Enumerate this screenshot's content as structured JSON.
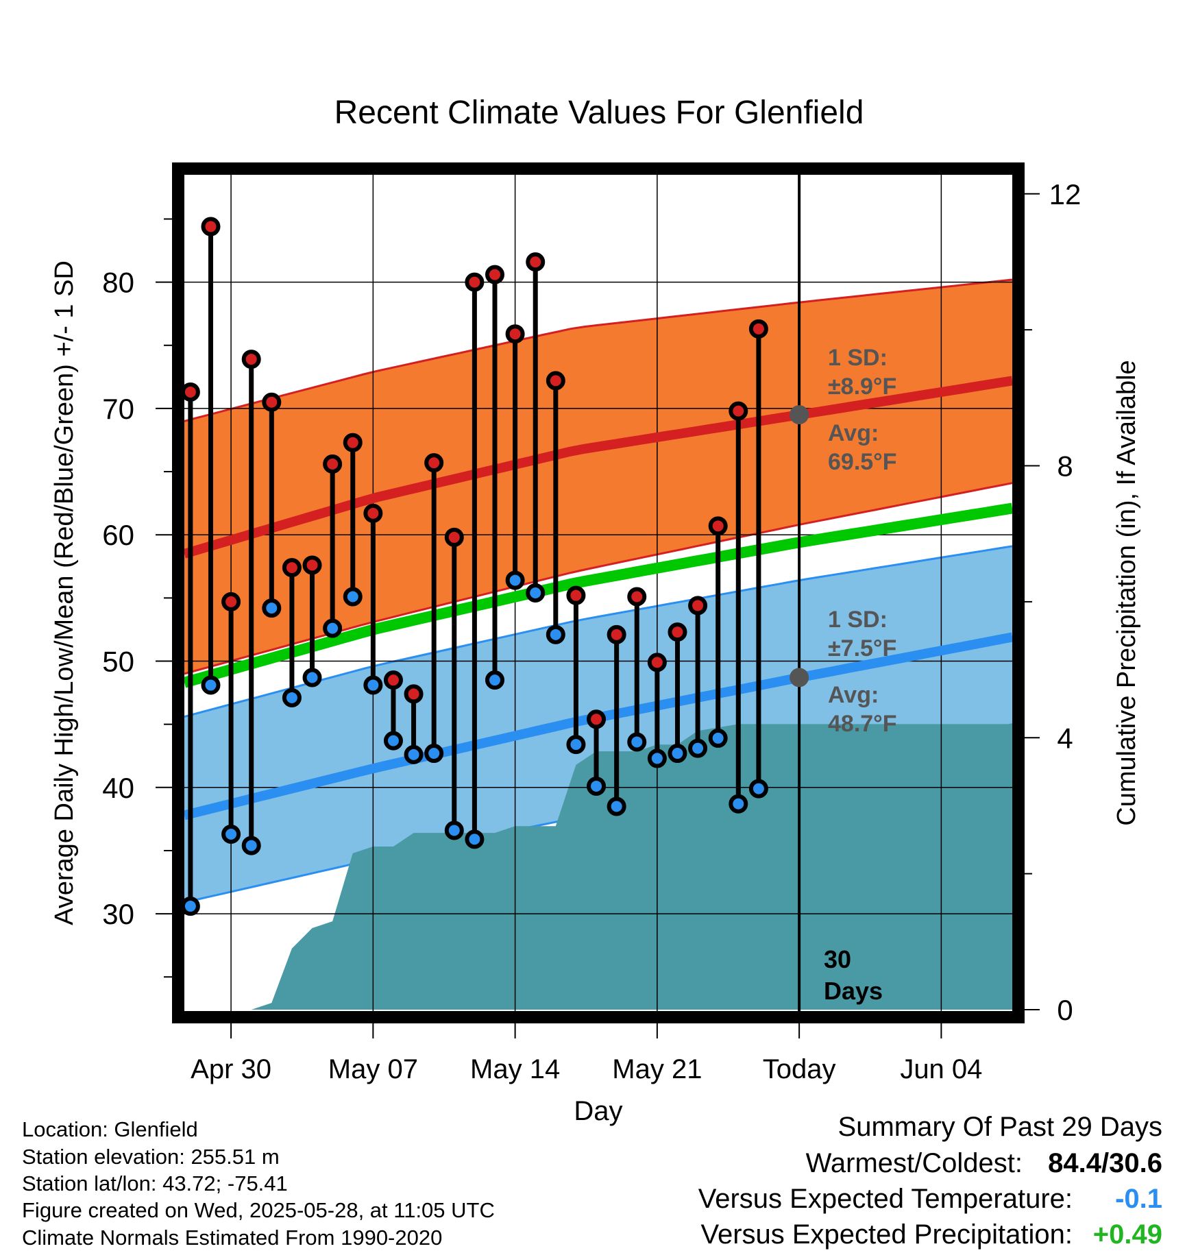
{
  "chart_data": {
    "type": "climate-range",
    "title": "Recent Climate Values For Glenfield",
    "xlabel": "Day",
    "ylabel_left": "Average Daily High/Low/Mean (Red/Blue/Green) +/- 1 SD",
    "ylabel_right": "Cumulative Precipitation (in), If Available",
    "x_start_date": "2025-04-27",
    "x_tick_labels": [
      "Apr 30",
      "May 07",
      "May 14",
      "May 21",
      "Today",
      "Jun 04"
    ],
    "x_tick_days": [
      3,
      10,
      17,
      24,
      31,
      38
    ],
    "x_range_days": [
      0.7,
      41.5
    ],
    "ylim_left": [
      22.3,
      88.5
    ],
    "y_ticks_left": [
      30,
      40,
      50,
      60,
      70,
      80
    ],
    "ylim_right": [
      -0.02,
      12.28
    ],
    "y_ticks_right": [
      0,
      4,
      8,
      12
    ],
    "today_day": 31,
    "daily": [
      {
        "day": 1,
        "high": 71.3,
        "low": 30.6
      },
      {
        "day": 2,
        "high": 84.4,
        "low": 48.1
      },
      {
        "day": 3,
        "high": 54.7,
        "low": 36.3
      },
      {
        "day": 4,
        "high": 73.9,
        "low": 35.4
      },
      {
        "day": 5,
        "high": 70.5,
        "low": 54.2
      },
      {
        "day": 6,
        "high": 57.4,
        "low": 47.1
      },
      {
        "day": 7,
        "high": 57.6,
        "low": 48.7
      },
      {
        "day": 8,
        "high": 65.6,
        "low": 52.6
      },
      {
        "day": 9,
        "high": 67.3,
        "low": 55.1
      },
      {
        "day": 10,
        "high": 61.7,
        "low": 48.1
      },
      {
        "day": 11,
        "high": 48.5,
        "low": 43.7
      },
      {
        "day": 12,
        "high": 47.4,
        "low": 42.6
      },
      {
        "day": 13,
        "high": 65.7,
        "low": 42.7
      },
      {
        "day": 14,
        "high": 59.8,
        "low": 36.6
      },
      {
        "day": 15,
        "high": 80.0,
        "low": 35.9
      },
      {
        "day": 16,
        "high": 80.6,
        "low": 48.5
      },
      {
        "day": 17,
        "high": 75.9,
        "low": 56.4
      },
      {
        "day": 18,
        "high": 81.6,
        "low": 55.4
      },
      {
        "day": 19,
        "high": 72.2,
        "low": 52.1
      },
      {
        "day": 20,
        "high": 55.2,
        "low": 43.4
      },
      {
        "day": 21,
        "high": 45.4,
        "low": 40.1
      },
      {
        "day": 22,
        "high": 52.1,
        "low": 38.5
      },
      {
        "day": 23,
        "high": 55.1,
        "low": 43.6
      },
      {
        "day": 24,
        "high": 49.9,
        "low": 42.3
      },
      {
        "day": 25,
        "high": 52.3,
        "low": 42.7
      },
      {
        "day": 26,
        "high": 54.4,
        "low": 43.1
      },
      {
        "day": 27,
        "high": 60.7,
        "low": 43.9
      },
      {
        "day": 28,
        "high": 69.8,
        "low": 38.7
      },
      {
        "day": 29,
        "high": 76.3,
        "low": 39.9
      }
    ],
    "normal_high": {
      "day": [
        0.7,
        10,
        20,
        31,
        41.5
      ],
      "avg": [
        58.5,
        62.9,
        66.7,
        69.5,
        72.2
      ],
      "upper": [
        69.0,
        72.9,
        76.4,
        78.4,
        80.2
      ],
      "lower": [
        49.0,
        53.1,
        57.1,
        60.8,
        64.1
      ]
    },
    "normal_low": {
      "day": [
        0.7,
        10,
        20,
        31,
        41.5
      ],
      "avg": [
        37.8,
        41.5,
        45.2,
        48.7,
        51.9
      ],
      "upper": [
        45.6,
        49.6,
        53.2,
        56.4,
        59.1
      ],
      "lower": [
        30.9,
        34.3,
        37.6,
        41.5,
        45.0
      ]
    },
    "normal_mean": {
      "day": [
        0.7,
        10,
        20,
        31,
        41.5
      ],
      "value": [
        48.3,
        52.5,
        56.2,
        59.4,
        62.1
      ]
    },
    "precip_cumulative": [
      [
        0.7,
        0
      ],
      [
        4.0,
        0
      ],
      [
        5.0,
        0.1
      ],
      [
        6.0,
        0.9
      ],
      [
        7.0,
        1.2
      ],
      [
        8.0,
        1.3
      ],
      [
        9.0,
        2.3
      ],
      [
        10.0,
        2.4
      ],
      [
        11.0,
        2.4
      ],
      [
        12.0,
        2.6
      ],
      [
        13.0,
        2.6
      ],
      [
        16.0,
        2.6
      ],
      [
        17.0,
        2.7
      ],
      [
        19.0,
        2.7
      ],
      [
        20.0,
        3.6
      ],
      [
        21.0,
        3.8
      ],
      [
        23.0,
        3.8
      ],
      [
        24.0,
        3.9
      ],
      [
        25.0,
        3.9
      ],
      [
        26.0,
        4.1
      ],
      [
        27.0,
        4.15
      ],
      [
        28.0,
        4.2
      ],
      [
        41.5,
        4.2
      ]
    ],
    "annotations": {
      "high_sd_label": "1 SD:",
      "high_sd_value": "±8.9°F",
      "high_avg_label": "Avg:",
      "high_avg_value": "69.5°F",
      "low_sd_label": "1 SD:",
      "low_sd_value": "±7.5°F",
      "low_avg_label": "Avg:",
      "low_avg_value": "48.7°F",
      "today_line1": "30",
      "today_line2": "Days"
    }
  },
  "info": {
    "location": "Location: Glenfield",
    "elevation": "Station elevation: 255.51 m",
    "latlon": "Station lat/lon: 43.72; -75.41",
    "created": "Figure created on Wed, 2025-05-28, at 11:05 UTC",
    "normals": "Climate Normals Estimated From 1990-2020"
  },
  "summary": {
    "title": "Summary Of Past 29 Days",
    "warm_cold_label": "Warmest/Coldest:",
    "warm_cold_value": "84.4/30.6",
    "temp_label": "Versus Expected Temperature:",
    "temp_value": "-0.1",
    "temp_color": "#2a8ff0",
    "precip_label": "Versus Expected Precipitation:",
    "precip_value": "+0.49",
    "precip_color": "#22b522"
  },
  "colors": {
    "high_band": "#f47a30",
    "high_band_edge": "#d42020",
    "high_avg": "#d42020",
    "low_band": "#80bfe6",
    "low_band_edge": "#2a8ff0",
    "low_avg": "#2a8ff0",
    "mean_line": "#00c800",
    "precip": "#4a9aa5",
    "high_dot": "#d42020",
    "low_dot": "#2a8ff0",
    "annotation": "#555555"
  }
}
